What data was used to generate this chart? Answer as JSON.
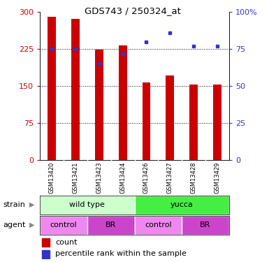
{
  "title": "GDS743 / 250324_at",
  "samples": [
    "GSM13420",
    "GSM13421",
    "GSM13423",
    "GSM13424",
    "GSM13426",
    "GSM13427",
    "GSM13428",
    "GSM13429"
  ],
  "counts": [
    290,
    286,
    224,
    233,
    158,
    172,
    153,
    153
  ],
  "percentile_ranks": [
    75,
    75,
    65,
    72,
    80,
    86,
    77,
    77
  ],
  "bar_color": "#cc0000",
  "dot_color": "#3333cc",
  "left_yticks": [
    0,
    75,
    150,
    225,
    300
  ],
  "right_yticks": [
    0,
    25,
    50,
    75,
    100
  ],
  "ylim_left": [
    0,
    300
  ],
  "ylim_right": [
    0,
    100
  ],
  "strain_colors": [
    "#ccffcc",
    "#44ee44"
  ],
  "strain_labels": [
    "wild type",
    "yucca"
  ],
  "agent_colors_light": "#ee88ee",
  "agent_colors_dark": "#cc44cc",
  "agent_labels": [
    "control",
    "BR",
    "control",
    "BR"
  ],
  "tick_label_bg": "#cccccc",
  "left_label_color": "#cc0000",
  "right_label_color": "#3333cc"
}
